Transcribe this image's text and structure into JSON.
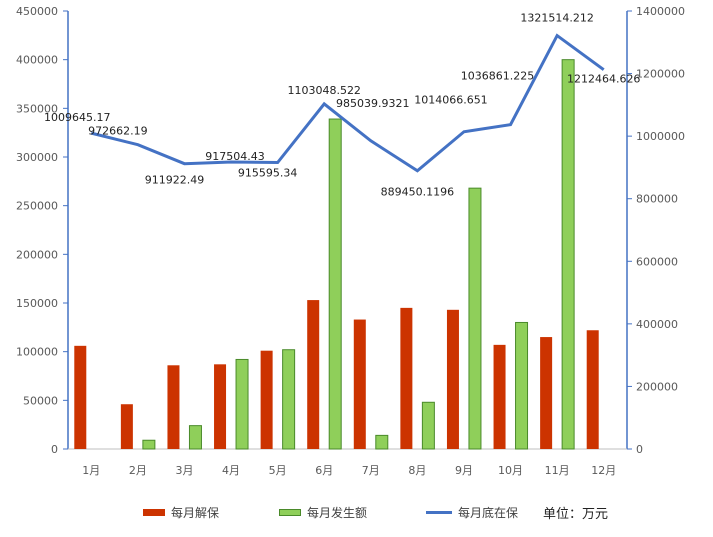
{
  "chart_data": {
    "type": "bar",
    "categories": [
      "1月",
      "2月",
      "3月",
      "4月",
      "5月",
      "6月",
      "7月",
      "8月",
      "9月",
      "10月",
      "11月",
      "12月"
    ],
    "series": [
      {
        "name": "每月解保",
        "axis": "left",
        "color": "#cc3300",
        "values": [
          106000,
          46000,
          86000,
          87000,
          101000,
          153000,
          133000,
          145000,
          143000,
          107000,
          115000,
          122000
        ]
      },
      {
        "name": "每月发生额",
        "axis": "left",
        "color": "#8fcf5a",
        "values": [
          0,
          9000,
          24000,
          92000,
          102000,
          339000,
          14000,
          48000,
          268000,
          130000,
          400000,
          0
        ]
      },
      {
        "name": "每月底在保",
        "axis": "right",
        "type": "line",
        "color": "#4472c4",
        "values": [
          1009645.17,
          972662.19,
          911922.49,
          917504.43,
          915595.34,
          1103048.522,
          985039.9321,
          889450.1196,
          1014066.651,
          1036861.225,
          1321514.212,
          1212464.626
        ]
      }
    ],
    "line_labels": [
      "1009645.17",
      "972662.19",
      "911922.49",
      "917504.43",
      "915595.34",
      "1103048.522",
      "985039.9321",
      "889450.1196",
      "1014066.651",
      "1036861.225",
      "1321514.212",
      "1212464.626"
    ],
    "yaxis_left": {
      "min": 0,
      "max": 450000,
      "step": 50000,
      "ticks": [
        "0",
        "50000",
        "100000",
        "150000",
        "200000",
        "250000",
        "300000",
        "350000",
        "400000",
        "450000"
      ]
    },
    "yaxis_right": {
      "min": 0,
      "max": 1400000,
      "step": 200000,
      "ticks": [
        "0",
        "200000",
        "400000",
        "600000",
        "800000",
        "1000000",
        "1200000",
        "1400000"
      ]
    },
    "grid": false,
    "legend_position": "bottom",
    "unit_label": "单位：万元"
  }
}
